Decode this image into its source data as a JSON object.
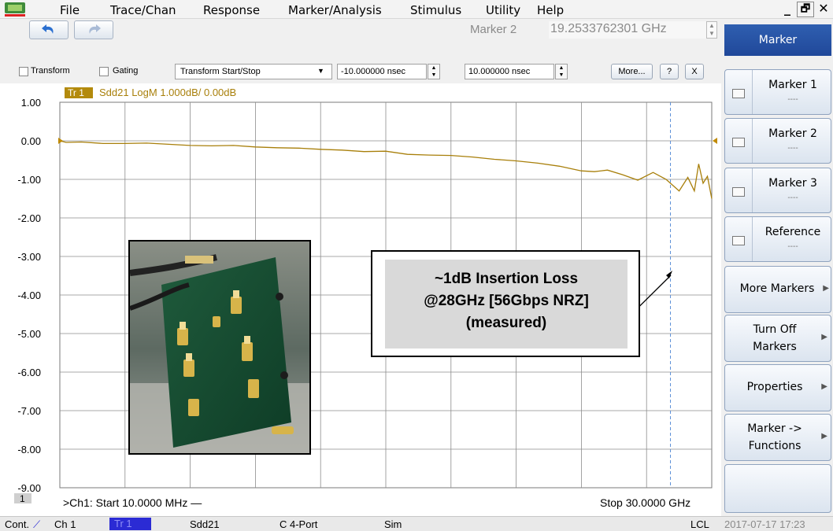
{
  "menu": {
    "items": [
      "File",
      "Trace/Chan",
      "Response",
      "Marker/Analysis",
      "Stimulus",
      "Utility",
      "Help"
    ]
  },
  "window_controls": {
    "minimize": "_",
    "restore": "🗗",
    "close": "✕"
  },
  "toolbar": {
    "undo_icon": "undo-icon",
    "redo_icon": "redo-icon",
    "marker_label": "Marker 2",
    "marker_value": "19.2533762301 GHz"
  },
  "transform_bar": {
    "transform_label": "Transform",
    "transform_checked": false,
    "gating_label": "Gating",
    "gating_checked": false,
    "mode_selected": "Transform Start/Stop",
    "start_value": "-10.000000 nsec",
    "stop_value": "10.000000 nsec",
    "more_label": "More...",
    "help_label": "?",
    "close_label": "X"
  },
  "trace": {
    "tag": "Tr 1",
    "header": "Sdd21 LogM 1.000dB/  0.00dB",
    "color": "#a87f0a"
  },
  "chart_data": {
    "type": "line",
    "title": "Sdd21 LogM 1.000dB/  0.00dB",
    "xlabel": "",
    "ylabel": "",
    "x_start_label": ">Ch1:  Start  10.0000 MHz —",
    "x_stop_label": "Stop  30.0000 GHz",
    "x_unit": "GHz",
    "xlim": [
      0.01,
      30.0
    ],
    "ylim": [
      -9.0,
      1.0
    ],
    "y_ticks": [
      "1.00",
      "0.00",
      "-1.00",
      "-2.00",
      "-3.00",
      "-4.00",
      "-5.00",
      "-6.00",
      "-7.00",
      "-8.00",
      "-9.00"
    ],
    "grid": true,
    "marker_position_ghz": 28.1,
    "reference_level": 0.0,
    "series": [
      {
        "x": [
          0.01,
          0.3,
          1.0,
          2.0,
          3.0,
          4.0,
          5.0,
          6.0,
          7.0,
          8.0,
          9.0,
          10.0,
          11.0,
          12.0,
          13.0,
          14.0,
          15.0,
          16.0,
          17.0,
          18.0,
          19.0,
          20.0,
          21.0,
          22.0,
          23.0,
          24.0,
          24.6,
          25.2,
          25.9,
          26.6,
          27.3,
          27.9,
          28.5,
          28.9,
          29.2,
          29.4,
          29.6,
          29.8,
          30.0
        ],
        "values": [
          0.0,
          -0.04,
          -0.03,
          -0.07,
          -0.07,
          -0.06,
          -0.09,
          -0.12,
          -0.13,
          -0.12,
          -0.16,
          -0.18,
          -0.19,
          -0.22,
          -0.24,
          -0.28,
          -0.27,
          -0.35,
          -0.37,
          -0.38,
          -0.42,
          -0.48,
          -0.52,
          -0.58,
          -0.66,
          -0.78,
          -0.8,
          -0.76,
          -0.88,
          -1.02,
          -0.82,
          -1.0,
          -1.3,
          -0.95,
          -1.3,
          -0.6,
          -1.1,
          -0.92,
          -1.5
        ]
      }
    ]
  },
  "annotation": {
    "line1": "~1dB Insertion Loss",
    "line2": "@28GHz [56Gbps NRZ]",
    "line3": "(measured)"
  },
  "channel_tag": "1",
  "statusbar": {
    "mode": "Cont.",
    "channel": "Ch 1",
    "trace": "Tr 1",
    "param": "Sdd21",
    "cal": "C  4-Port",
    "sim": "Sim",
    "lcl": "LCL",
    "datetime": "2017-07-17 17:23"
  },
  "right_panel": {
    "header": "Marker",
    "markers": [
      {
        "label": "Marker 1",
        "value": "----"
      },
      {
        "label": "Marker 2",
        "value": "----"
      },
      {
        "label": "Marker 3",
        "value": "----"
      },
      {
        "label": "Reference",
        "value": "----"
      }
    ],
    "buttons": [
      {
        "line1": "More Markers",
        "line2": ""
      },
      {
        "line1": "Turn Off",
        "line2": "Markers"
      },
      {
        "line1": "Properties",
        "line2": ""
      },
      {
        "line1": "Marker ->",
        "line2": "Functions"
      }
    ]
  }
}
